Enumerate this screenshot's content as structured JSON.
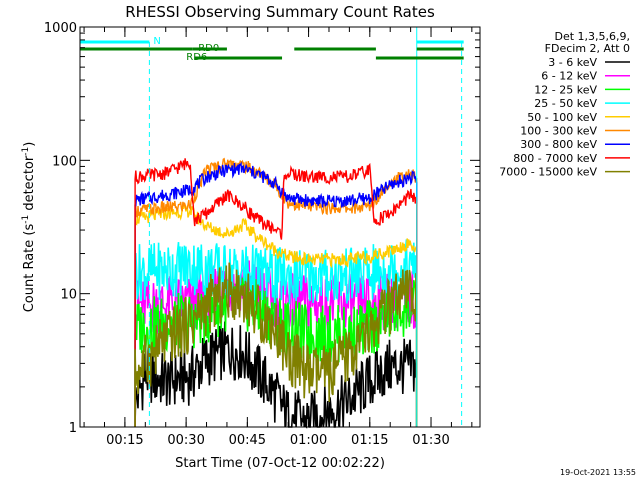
{
  "chart_data": {
    "type": "line",
    "title": "RHESSI Observing Summary Count Rates",
    "xlabel": "Start Time (07-Oct-12 00:02:22)",
    "ylabel_main": "Count Rate (s",
    "ylabel_sup1": "-1",
    "ylabel_mid": " detector",
    "ylabel_sup2": "-1",
    "ylabel_end": ")",
    "y_scale": "log",
    "ylim": [
      1,
      1000
    ],
    "xlim": [
      4,
      102
    ],
    "y_tick_labels": [
      {
        "value": 1,
        "label": "1"
      },
      {
        "value": 10,
        "label": "10"
      },
      {
        "value": 100,
        "label": "100"
      },
      {
        "value": 1000,
        "label": "1000"
      }
    ],
    "x_tick_labels": [
      {
        "value": 15,
        "label": "00:15"
      },
      {
        "value": 30,
        "label": "00:30"
      },
      {
        "value": 45,
        "label": "00:45"
      },
      {
        "value": 60,
        "label": "01:00"
      },
      {
        "value": 75,
        "label": "01:15"
      },
      {
        "value": 90,
        "label": "01:30"
      }
    ],
    "legend_header": [
      "Det 1,3,5,6,9,",
      "FDecim 2, Att 0"
    ],
    "legend_position": "right",
    "footer_date": "19-Oct-2021 13:55",
    "observation_windows": [
      [
        17.5,
        31.5
      ],
      [
        31.5,
        53.5
      ],
      [
        53.5,
        76
      ],
      [
        76,
        86.5
      ]
    ],
    "night_markers": {
      "label": "N",
      "lines": [
        21,
        97.5
      ],
      "spans": [
        [
          4,
          21
        ],
        [
          86.5,
          98
        ]
      ]
    },
    "saa_lines": [
      86.5
    ],
    "flags": [
      {
        "label": "RD0",
        "spans": [
          [
            4,
            31.5
          ],
          [
            31.5,
            40
          ],
          [
            56.5,
            76.5
          ],
          [
            86.5,
            98
          ]
        ]
      },
      {
        "label": "RD6",
        "spans": [
          [
            32,
            53.5
          ],
          [
            76.5,
            98
          ]
        ]
      }
    ],
    "series": [
      {
        "name": "3 - 6 keV",
        "color": "#000000",
        "points": [
          [
            17.5,
            1.5
          ],
          [
            20,
            2.5
          ],
          [
            25,
            2.2
          ],
          [
            31,
            2.4
          ],
          [
            35,
            3.2
          ],
          [
            40,
            3.8
          ],
          [
            44,
            3.6
          ],
          [
            48,
            2.5
          ],
          [
            52,
            1.7
          ],
          [
            55,
            1.2
          ],
          [
            60,
            1.1
          ],
          [
            65,
            1.3
          ],
          [
            70,
            1.6
          ],
          [
            75,
            2.2
          ],
          [
            80,
            2.8
          ],
          [
            85,
            2.8
          ],
          [
            86.5,
            2.8
          ]
        ]
      },
      {
        "name": "6 - 12 keV",
        "color": "#ff00ff",
        "points": [
          [
            17.5,
            8.0
          ],
          [
            25,
            8.3
          ],
          [
            31,
            8.5
          ],
          [
            35,
            9.5
          ],
          [
            40,
            11.5
          ],
          [
            44,
            12.0
          ],
          [
            48,
            10.5
          ],
          [
            52,
            9.2
          ],
          [
            55,
            8.7
          ],
          [
            60,
            8.5
          ],
          [
            65,
            8.5
          ],
          [
            70,
            8.5
          ],
          [
            75,
            8.5
          ],
          [
            80,
            8.8
          ],
          [
            85,
            9.0
          ],
          [
            86.5,
            9.0
          ]
        ]
      },
      {
        "name": "12 - 25 keV",
        "color": "#00ff00",
        "points": [
          [
            17.5,
            5.5
          ],
          [
            25,
            6.0
          ],
          [
            31,
            6.2
          ],
          [
            35,
            6.8
          ],
          [
            40,
            8.5
          ],
          [
            44,
            8.8
          ],
          [
            48,
            7.5
          ],
          [
            52,
            6.5
          ],
          [
            55,
            5.5
          ],
          [
            60,
            5.0
          ],
          [
            65,
            5.0
          ],
          [
            70,
            5.0
          ],
          [
            75,
            5.5
          ],
          [
            80,
            7.0
          ],
          [
            85,
            8.0
          ],
          [
            86.5,
            7.5
          ]
        ]
      },
      {
        "name": "25 - 50 keV",
        "color": "#00ffff",
        "points": [
          [
            17.5,
            14.5
          ],
          [
            25,
            15.0
          ],
          [
            31,
            16.0
          ],
          [
            35,
            15.5
          ],
          [
            40,
            14.5
          ],
          [
            44,
            15.0
          ],
          [
            48,
            14.0
          ],
          [
            52,
            13.5
          ],
          [
            55,
            13.5
          ],
          [
            60,
            13.5
          ],
          [
            65,
            13.5
          ],
          [
            70,
            13.5
          ],
          [
            75,
            14.0
          ],
          [
            80,
            15.5
          ],
          [
            85,
            16.0
          ],
          [
            86.5,
            15.0
          ]
        ]
      },
      {
        "name": "50 - 100 keV",
        "color": "#ffcc00",
        "points": [
          [
            17.5,
            36
          ],
          [
            25,
            40
          ],
          [
            31,
            42
          ],
          [
            35,
            32
          ],
          [
            40,
            28
          ],
          [
            44,
            33
          ],
          [
            48,
            26
          ],
          [
            52,
            21
          ],
          [
            55,
            19
          ],
          [
            60,
            18
          ],
          [
            65,
            18
          ],
          [
            70,
            18
          ],
          [
            75,
            19
          ],
          [
            80,
            21
          ],
          [
            85,
            24
          ],
          [
            86.5,
            20
          ]
        ]
      },
      {
        "name": "100 - 300 keV",
        "color": "#ff8800",
        "points": [
          [
            17.5,
            42
          ],
          [
            25,
            44
          ],
          [
            31,
            46
          ],
          [
            35,
            85
          ],
          [
            40,
            95
          ],
          [
            44,
            92
          ],
          [
            48,
            80
          ],
          [
            52,
            65
          ],
          [
            55,
            48
          ],
          [
            60,
            45
          ],
          [
            65,
            44
          ],
          [
            70,
            44
          ],
          [
            75,
            45
          ],
          [
            80,
            70
          ],
          [
            85,
            78
          ],
          [
            86.5,
            75
          ]
        ]
      },
      {
        "name": "300 - 800 keV",
        "color": "#0000ff",
        "points": [
          [
            17.5,
            50
          ],
          [
            25,
            55
          ],
          [
            31,
            60
          ],
          [
            35,
            75
          ],
          [
            40,
            85
          ],
          [
            44,
            86
          ],
          [
            48,
            78
          ],
          [
            52,
            66
          ],
          [
            55,
            52
          ],
          [
            60,
            50
          ],
          [
            65,
            49
          ],
          [
            70,
            50
          ],
          [
            75,
            52
          ],
          [
            80,
            65
          ],
          [
            85,
            75
          ],
          [
            86.5,
            72
          ]
        ]
      },
      {
        "name": "800 - 7000 keV",
        "color": "#ff0000",
        "points": [
          [
            17.5,
            75
          ],
          [
            25,
            80
          ],
          [
            31,
            98
          ],
          [
            32,
            35
          ],
          [
            35,
            40
          ],
          [
            40,
            55
          ],
          [
            44,
            45
          ],
          [
            48,
            35
          ],
          [
            52,
            30
          ],
          [
            53.5,
            28
          ],
          [
            54,
            80
          ],
          [
            60,
            75
          ],
          [
            65,
            75
          ],
          [
            70,
            75
          ],
          [
            75,
            85
          ],
          [
            76,
            35
          ],
          [
            80,
            40
          ],
          [
            85,
            55
          ],
          [
            86.5,
            50
          ]
        ]
      },
      {
        "name": "7000 - 15000 keV",
        "color": "#808000",
        "points": [
          [
            17.5,
            2.5
          ],
          [
            20,
            3.0
          ],
          [
            25,
            4.5
          ],
          [
            31,
            6.0
          ],
          [
            35,
            8.0
          ],
          [
            40,
            10.5
          ],
          [
            44,
            10.0
          ],
          [
            48,
            7.0
          ],
          [
            52,
            5.5
          ],
          [
            55,
            3.5
          ],
          [
            60,
            2.5
          ],
          [
            65,
            2.5
          ],
          [
            70,
            3.5
          ],
          [
            75,
            5.0
          ],
          [
            80,
            8.0
          ],
          [
            85,
            10.0
          ],
          [
            86.5,
            9.0
          ]
        ]
      }
    ]
  }
}
